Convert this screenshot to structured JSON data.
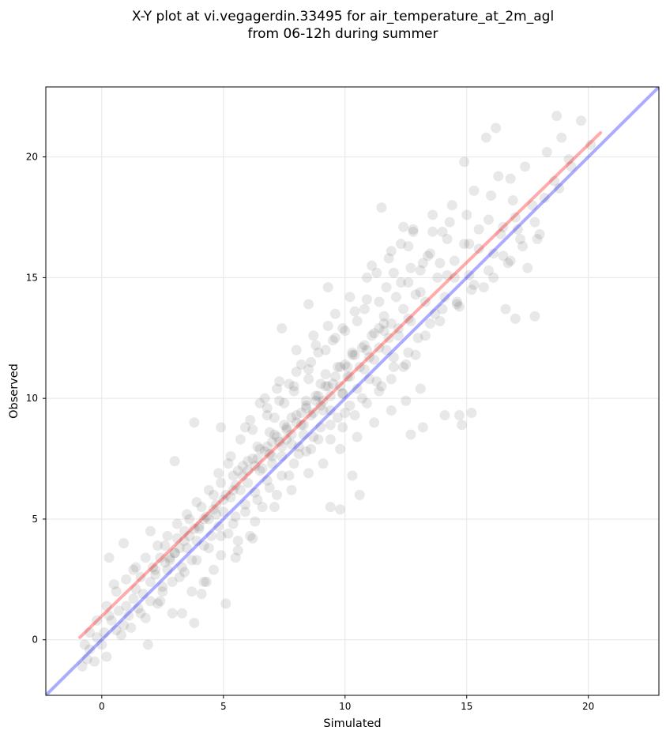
{
  "chart_data": {
    "type": "scatter",
    "title_lines": [
      "X-Y plot at vi.vegagerdin.33495 for air_temperature_at_2m_agl",
      "from 06-12h during summer"
    ],
    "xlabel": "Simulated",
    "ylabel": "Observed",
    "xlim": [
      -2.3,
      22.9
    ],
    "ylim": [
      -2.3,
      22.9
    ],
    "xticks": [
      0,
      5,
      10,
      15,
      20
    ],
    "yticks": [
      0,
      5,
      10,
      15,
      20
    ],
    "grid": true,
    "point_color": "#000000",
    "point_opacity": 0.09,
    "identity_line": {
      "from": [
        -2.3,
        -2.3
      ],
      "to": [
        22.9,
        22.9
      ],
      "color": "#0000ff"
    },
    "regression_line": {
      "from": [
        -0.9,
        0.1
      ],
      "to": [
        20.5,
        21.0
      ],
      "color": "#ff0000"
    },
    "points": [
      [
        -0.8,
        -1.1
      ],
      [
        -0.6,
        -0.8
      ],
      [
        -0.5,
        -0.4
      ],
      [
        -0.3,
        -0.9
      ],
      [
        -0.2,
        0.1
      ],
      [
        0.0,
        -0.2
      ],
      [
        0.1,
        0.3
      ],
      [
        0.2,
        -0.7
      ],
      [
        0.3,
        1.0
      ],
      [
        0.4,
        0.8
      ],
      [
        0.6,
        0.4
      ],
      [
        0.7,
        1.2
      ],
      [
        0.8,
        0.2
      ],
      [
        0.9,
        0.6
      ],
      [
        1.0,
        1.4
      ],
      [
        1.1,
        1.0
      ],
      [
        1.2,
        0.5
      ],
      [
        1.3,
        1.7
      ],
      [
        1.4,
        2.1
      ],
      [
        1.5,
        1.3
      ],
      [
        1.6,
        2.6
      ],
      [
        1.7,
        1.9
      ],
      [
        1.8,
        0.9
      ],
      [
        1.9,
        -0.2
      ],
      [
        2.0,
        2.4
      ],
      [
        2.1,
        3.0
      ],
      [
        2.2,
        2.7
      ],
      [
        2.3,
        1.5
      ],
      [
        2.4,
        3.4
      ],
      [
        2.5,
        2.2
      ],
      [
        2.6,
        3.9
      ],
      [
        2.7,
        2.9
      ],
      [
        2.8,
        3.3
      ],
      [
        2.9,
        1.1
      ],
      [
        3.0,
        3.6
      ],
      [
        3.1,
        4.2
      ],
      [
        3.2,
        2.6
      ],
      [
        3.3,
        3.0
      ],
      [
        3.4,
        4.5
      ],
      [
        3.5,
        3.8
      ],
      [
        3.6,
        5.0
      ],
      [
        3.7,
        3.3
      ],
      [
        3.8,
        0.7
      ],
      [
        3.9,
        4.1
      ],
      [
        4.0,
        4.6
      ],
      [
        4.1,
        5.5
      ],
      [
        4.2,
        3.9
      ],
      [
        4.3,
        2.4
      ],
      [
        4.4,
        5.0
      ],
      [
        4.5,
        4.3
      ],
      [
        4.6,
        6.0
      ],
      [
        4.7,
        5.2
      ],
      [
        4.8,
        4.7
      ],
      [
        4.9,
        6.5
      ],
      [
        5.0,
        5.3
      ],
      [
        5.1,
        1.5
      ],
      [
        5.2,
        4.4
      ],
      [
        5.3,
        5.9
      ],
      [
        5.4,
        6.8
      ],
      [
        5.5,
        5.1
      ],
      [
        5.6,
        3.7
      ],
      [
        5.7,
        6.2
      ],
      [
        5.8,
        7.2
      ],
      [
        5.9,
        5.6
      ],
      [
        6.0,
        6.5
      ],
      [
        6.1,
        4.3
      ],
      [
        6.2,
        7.5
      ],
      [
        6.3,
        6.1
      ],
      [
        6.4,
        8.0
      ],
      [
        6.5,
        7.0
      ],
      [
        6.6,
        5.5
      ],
      [
        6.7,
        7.8
      ],
      [
        6.8,
        6.6
      ],
      [
        6.9,
        8.6
      ],
      [
        7.0,
        7.3
      ],
      [
        7.1,
        9.2
      ],
      [
        7.2,
        6.0
      ],
      [
        7.3,
        8.2
      ],
      [
        7.4,
        7.6
      ],
      [
        7.5,
        9.8
      ],
      [
        7.6,
        8.7
      ],
      [
        7.7,
        6.8
      ],
      [
        7.8,
        8.1
      ],
      [
        7.9,
        10.3
      ],
      [
        8.0,
        9.0
      ],
      [
        8.1,
        7.7
      ],
      [
        8.2,
        11.4
      ],
      [
        8.3,
        8.5
      ],
      [
        8.4,
        9.6
      ],
      [
        8.5,
        10.8
      ],
      [
        8.6,
        7.9
      ],
      [
        8.7,
        9.4
      ],
      [
        8.8,
        12.2
      ],
      [
        8.9,
        10.1
      ],
      [
        9.0,
        8.8
      ],
      [
        9.1,
        9.9
      ],
      [
        9.2,
        11.0
      ],
      [
        9.3,
        13.0
      ],
      [
        9.4,
        9.5
      ],
      [
        9.5,
        10.6
      ],
      [
        9.6,
        12.5
      ],
      [
        9.7,
        9.2
      ],
      [
        9.8,
        11.3
      ],
      [
        9.9,
        10.2
      ],
      [
        10.0,
        12.8
      ],
      [
        10.1,
        10.9
      ],
      [
        10.2,
        9.7
      ],
      [
        10.3,
        11.8
      ],
      [
        10.4,
        13.6
      ],
      [
        10.5,
        10.4
      ],
      [
        10.6,
        6.0
      ],
      [
        10.7,
        12.1
      ],
      [
        10.8,
        11.2
      ],
      [
        10.9,
        14.1
      ],
      [
        11.0,
        10.8
      ],
      [
        11.1,
        12.6
      ],
      [
        11.2,
        11.6
      ],
      [
        11.3,
        15.2
      ],
      [
        11.4,
        12.9
      ],
      [
        11.5,
        10.5
      ],
      [
        11.6,
        13.4
      ],
      [
        11.7,
        12.0
      ],
      [
        11.8,
        15.8
      ],
      [
        11.9,
        13.1
      ],
      [
        12.0,
        11.7
      ],
      [
        12.1,
        14.2
      ],
      [
        12.2,
        12.6
      ],
      [
        12.3,
        16.4
      ],
      [
        12.4,
        13.7
      ],
      [
        12.5,
        11.4
      ],
      [
        12.6,
        14.8
      ],
      [
        12.7,
        13.2
      ],
      [
        12.8,
        17.0
      ],
      [
        12.9,
        14.3
      ],
      [
        13.0,
        12.5
      ],
      [
        13.1,
        15.3
      ],
      [
        13.2,
        8.8
      ],
      [
        13.3,
        14.0
      ],
      [
        13.5,
        16.0
      ],
      [
        13.7,
        13.5
      ],
      [
        13.9,
        15.6
      ],
      [
        14.1,
        14.2
      ],
      [
        14.3,
        17.3
      ],
      [
        14.5,
        15.0
      ],
      [
        14.7,
        13.8
      ],
      [
        14.9,
        16.4
      ],
      [
        15.1,
        15.1
      ],
      [
        15.3,
        18.6
      ],
      [
        15.5,
        16.2
      ],
      [
        15.7,
        14.6
      ],
      [
        15.9,
        17.4
      ],
      [
        16.1,
        16.0
      ],
      [
        16.3,
        19.2
      ],
      [
        16.5,
        17.1
      ],
      [
        16.7,
        15.6
      ],
      [
        16.9,
        18.2
      ],
      [
        17.1,
        17.0
      ],
      [
        17.4,
        19.6
      ],
      [
        17.7,
        18.0
      ],
      [
        18.0,
        16.8
      ],
      [
        18.3,
        20.2
      ],
      [
        18.6,
        19.0
      ],
      [
        18.9,
        20.8
      ],
      [
        19.3,
        19.6
      ],
      [
        19.7,
        21.5
      ],
      [
        20.1,
        20.5
      ],
      [
        15.8,
        20.8
      ],
      [
        18.7,
        21.7
      ],
      [
        16.2,
        21.2
      ],
      [
        14.7,
        9.3
      ],
      [
        15.2,
        9.4
      ],
      [
        14.1,
        9.3
      ],
      [
        14.8,
        8.9
      ],
      [
        16.6,
        13.7
      ],
      [
        17.0,
        13.3
      ],
      [
        17.8,
        13.4
      ],
      [
        7.4,
        12.9
      ],
      [
        8.5,
        13.9
      ],
      [
        9.3,
        14.6
      ],
      [
        9.4,
        5.5
      ],
      [
        9.8,
        5.4
      ],
      [
        10.3,
        6.8
      ],
      [
        2.0,
        4.5
      ],
      [
        3.0,
        7.4
      ],
      [
        3.8,
        9.0
      ],
      [
        4.9,
        8.8
      ],
      [
        0.9,
        4.0
      ],
      [
        0.3,
        3.4
      ],
      [
        0.5,
        2.3
      ],
      [
        12.7,
        8.5
      ],
      [
        11.5,
        17.9
      ],
      [
        12.4,
        17.1
      ],
      [
        13.6,
        17.6
      ],
      [
        14.9,
        19.8
      ],
      [
        3.3,
        1.1
      ],
      [
        4.1,
        1.9
      ],
      [
        5.5,
        3.4
      ],
      [
        6.2,
        4.2
      ],
      [
        1.3,
        2.9
      ],
      [
        2.4,
        1.6
      ],
      [
        5.9,
        8.8
      ],
      [
        6.8,
        9.6
      ],
      [
        7.7,
        10.6
      ],
      [
        8.6,
        11.5
      ],
      [
        9.5,
        12.4
      ],
      [
        10.5,
        13.2
      ],
      [
        11.4,
        14.0
      ],
      [
        12.3,
        14.8
      ],
      [
        13.2,
        15.6
      ],
      [
        14.2,
        16.6
      ],
      [
        6.5,
        9.8
      ],
      [
        7.2,
        10.4
      ],
      [
        8.0,
        11.1
      ],
      [
        8.9,
        11.9
      ],
      [
        9.9,
        12.9
      ],
      [
        10.8,
        13.7
      ],
      [
        11.7,
        14.6
      ],
      [
        12.7,
        15.4
      ],
      [
        7.0,
        8.2
      ],
      [
        7.5,
        8.9
      ],
      [
        8.2,
        9.4
      ],
      [
        8.8,
        9.9
      ],
      [
        9.3,
        10.5
      ],
      [
        10.1,
        11.3
      ],
      [
        10.9,
        12.0
      ],
      [
        11.6,
        12.8
      ],
      [
        6.0,
        7.4
      ],
      [
        6.5,
        7.9
      ],
      [
        7.1,
        8.5
      ],
      [
        7.8,
        9.2
      ],
      [
        8.4,
        9.9
      ],
      [
        9.0,
        10.6
      ],
      [
        9.7,
        11.3
      ],
      [
        10.3,
        11.9
      ],
      [
        5.4,
        6.2
      ],
      [
        5.8,
        6.8
      ],
      [
        6.3,
        7.2
      ],
      [
        6.9,
        7.7
      ],
      [
        7.6,
        8.3
      ],
      [
        8.3,
        8.9
      ],
      [
        9.1,
        9.5
      ],
      [
        9.9,
        10.2
      ],
      [
        4.3,
        5.1
      ],
      [
        4.7,
        5.6
      ],
      [
        5.1,
        6.0
      ],
      [
        5.5,
        6.4
      ],
      [
        4.0,
        4.7
      ],
      [
        3.6,
        4.3
      ],
      [
        3.2,
        3.8
      ],
      [
        2.8,
        3.4
      ],
      [
        2.2,
        2.9
      ],
      [
        2.6,
        3.2
      ],
      [
        3.0,
        3.6
      ],
      [
        3.4,
        4.1
      ],
      [
        3.8,
        4.6
      ],
      [
        4.2,
        5.0
      ],
      [
        4.6,
        5.4
      ],
      [
        5.0,
        5.8
      ],
      [
        8.1,
        8.0
      ],
      [
        8.7,
        8.4
      ],
      [
        9.4,
        8.9
      ],
      [
        10.0,
        9.4
      ],
      [
        10.7,
        10.0
      ],
      [
        11.3,
        10.7
      ],
      [
        12.0,
        11.3
      ],
      [
        12.6,
        11.9
      ],
      [
        13.3,
        12.6
      ],
      [
        13.9,
        13.2
      ],
      [
        14.6,
        13.9
      ],
      [
        15.2,
        14.5
      ],
      [
        15.9,
        15.3
      ],
      [
        16.5,
        15.9
      ],
      [
        17.2,
        16.6
      ],
      [
        17.8,
        17.3
      ],
      [
        11.1,
        15.5
      ],
      [
        11.9,
        16.1
      ],
      [
        12.8,
        16.9
      ],
      [
        13.6,
        16.9
      ],
      [
        14.4,
        18.0
      ],
      [
        15.0,
        17.6
      ],
      [
        16.0,
        18.4
      ],
      [
        16.8,
        19.1
      ],
      [
        12.0,
        15.2
      ],
      [
        12.6,
        16.3
      ],
      [
        13.4,
        15.9
      ],
      [
        14.0,
        16.9
      ],
      [
        13.1,
        14.4
      ],
      [
        13.8,
        15.0
      ],
      [
        14.5,
        15.7
      ],
      [
        15.1,
        16.4
      ],
      [
        6.1,
        9.1
      ],
      [
        6.7,
        10.0
      ],
      [
        7.3,
        10.7
      ],
      [
        8.0,
        12.0
      ],
      [
        8.7,
        12.6
      ],
      [
        9.6,
        13.5
      ],
      [
        10.2,
        14.2
      ],
      [
        10.9,
        15.0
      ],
      [
        5.3,
        7.6
      ],
      [
        5.7,
        8.3
      ],
      [
        6.2,
        8.7
      ],
      [
        6.8,
        9.3
      ],
      [
        7.3,
        9.9
      ],
      [
        7.9,
        10.5
      ],
      [
        8.5,
        11.2
      ],
      [
        9.2,
        12.0
      ],
      [
        4.4,
        6.2
      ],
      [
        4.8,
        6.9
      ],
      [
        5.2,
        7.3
      ],
      [
        3.9,
        5.7
      ],
      [
        3.5,
        5.2
      ],
      [
        3.1,
        4.8
      ],
      [
        2.7,
        4.3
      ],
      [
        2.3,
        3.9
      ],
      [
        1.8,
        3.4
      ],
      [
        1.4,
        3.0
      ],
      [
        1.0,
        2.5
      ],
      [
        0.6,
        2.0
      ],
      [
        0.2,
        1.4
      ],
      [
        -0.2,
        0.8
      ],
      [
        -0.5,
        0.3
      ],
      [
        -0.7,
        -0.2
      ],
      [
        1.6,
        1.1
      ],
      [
        2.0,
        1.6
      ],
      [
        2.5,
        2.0
      ],
      [
        2.9,
        2.4
      ],
      [
        3.4,
        2.8
      ],
      [
        3.9,
        3.3
      ],
      [
        4.4,
        3.8
      ],
      [
        4.9,
        4.3
      ],
      [
        5.4,
        4.8
      ],
      [
        5.9,
        5.3
      ],
      [
        6.4,
        5.8
      ],
      [
        6.9,
        6.3
      ],
      [
        7.4,
        6.8
      ],
      [
        7.9,
        7.3
      ],
      [
        8.4,
        7.8
      ],
      [
        8.9,
        8.3
      ],
      [
        9.4,
        8.3
      ],
      [
        9.9,
        8.8
      ],
      [
        10.4,
        9.3
      ],
      [
        10.9,
        9.8
      ],
      [
        11.4,
        10.3
      ],
      [
        11.9,
        10.8
      ],
      [
        12.4,
        11.3
      ],
      [
        12.9,
        11.8
      ],
      [
        6.6,
        7.1
      ],
      [
        7.0,
        7.6
      ],
      [
        7.4,
        8.0
      ],
      [
        7.8,
        8.5
      ],
      [
        8.2,
        8.9
      ],
      [
        8.6,
        9.3
      ],
      [
        9.0,
        9.7
      ],
      [
        9.4,
        10.1
      ],
      [
        9.8,
        10.5
      ],
      [
        10.2,
        10.9
      ],
      [
        10.6,
        11.3
      ],
      [
        11.0,
        11.7
      ],
      [
        11.4,
        12.1
      ],
      [
        11.8,
        12.5
      ],
      [
        12.2,
        12.9
      ],
      [
        12.6,
        13.3
      ],
      [
        5.6,
        7.0
      ],
      [
        6.0,
        7.0
      ],
      [
        6.4,
        7.5
      ],
      [
        6.8,
        8.0
      ],
      [
        7.2,
        8.4
      ],
      [
        7.6,
        8.8
      ],
      [
        8.0,
        9.3
      ],
      [
        8.4,
        9.7
      ],
      [
        8.8,
        10.1
      ],
      [
        9.2,
        10.5
      ],
      [
        9.6,
        10.9
      ],
      [
        10.0,
        11.4
      ],
      [
        10.4,
        11.8
      ],
      [
        10.8,
        12.2
      ],
      [
        11.2,
        12.7
      ],
      [
        11.6,
        13.1
      ],
      [
        17.5,
        15.4
      ],
      [
        18.2,
        18.3
      ],
      [
        18.8,
        18.7
      ],
      [
        19.2,
        19.9
      ],
      [
        17.0,
        17.5
      ],
      [
        16.4,
        16.8
      ],
      [
        15.5,
        17.0
      ],
      [
        14.2,
        15.1
      ],
      [
        13.5,
        13.1
      ],
      [
        14.0,
        13.7
      ],
      [
        14.6,
        14.0
      ],
      [
        15.3,
        14.7
      ],
      [
        16.1,
        15.0
      ],
      [
        16.8,
        15.7
      ],
      [
        17.3,
        16.3
      ],
      [
        17.9,
        16.6
      ],
      [
        4.6,
        2.9
      ],
      [
        4.2,
        2.4
      ],
      [
        3.7,
        2.0
      ],
      [
        4.9,
        3.5
      ],
      [
        5.6,
        4.1
      ],
      [
        6.3,
        4.9
      ],
      [
        7.1,
        5.5
      ],
      [
        7.8,
        6.2
      ],
      [
        8.5,
        6.9
      ],
      [
        9.1,
        7.3
      ],
      [
        9.8,
        7.9
      ],
      [
        10.5,
        8.4
      ],
      [
        11.2,
        9.0
      ],
      [
        11.9,
        9.5
      ],
      [
        12.5,
        9.9
      ],
      [
        13.1,
        10.4
      ]
    ]
  }
}
